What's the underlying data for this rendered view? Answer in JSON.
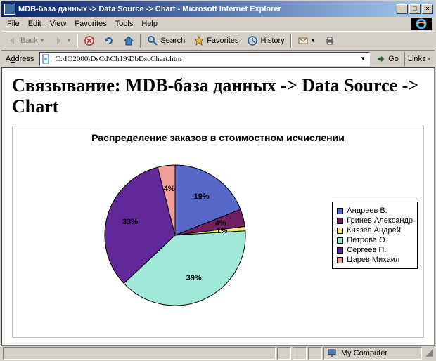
{
  "window": {
    "title": "MDB-база данных -> Data Source -> Chart - Microsoft Internet Explorer",
    "min_label": "_",
    "max_label": "□",
    "close_label": "×"
  },
  "menu": {
    "file": "File",
    "edit": "Edit",
    "view": "View",
    "favorites": "Favorites",
    "tools": "Tools",
    "help": "Help"
  },
  "toolbar": {
    "back": "Back",
    "forward": "",
    "search": "Search",
    "favorites": "Favorites",
    "history": "History"
  },
  "address": {
    "label": "Address",
    "value": "C:\\IO2000\\DsCd\\Ch19\\DbDscChart.htm",
    "go": "Go",
    "links": "Links"
  },
  "page": {
    "heading": "Связывание: MDB-база данных -> Data Source -> Chart"
  },
  "chart": {
    "type": "pie",
    "title": "Распределение заказов в стоимостном исчислении",
    "slices": [
      {
        "label": "Андреев В.",
        "value": 19,
        "pct": "19%",
        "color": "#5868c8"
      },
      {
        "label": "Гринев Александр",
        "value": 4,
        "pct": "4%",
        "color": "#702060"
      },
      {
        "label": "Князев Андрей",
        "value": 1,
        "pct": "1%",
        "color": "#f0e878"
      },
      {
        "label": "Петрова О.",
        "value": 39,
        "pct": "39%",
        "color": "#a0e8d8"
      },
      {
        "label": "Сергеев П.",
        "value": 33,
        "pct": "33%",
        "color": "#602898"
      },
      {
        "label": "Царев Михаил",
        "value": 4,
        "pct": "4%",
        "color": "#f0a098"
      }
    ],
    "start_angle": -90,
    "label_radius": 0.58,
    "border_color": "#000000",
    "background": "#ffffff"
  },
  "status": {
    "zone": "My Computer"
  }
}
